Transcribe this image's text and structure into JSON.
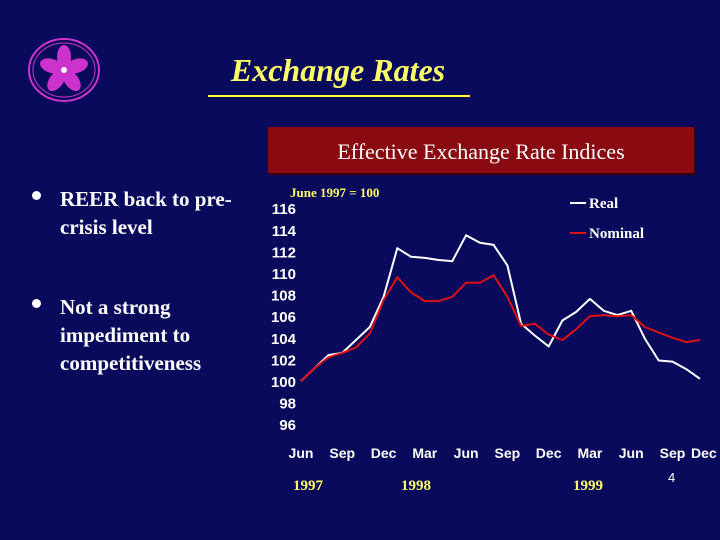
{
  "slide": {
    "title": "Exchange Rates",
    "chart_heading": "Effective Exchange Rate Indices",
    "bullets": [
      "REER back to pre-crisis level",
      "Not a strong impediment to competitiveness"
    ],
    "page_number": "4"
  },
  "colors": {
    "background": "#0a0a5c",
    "title": "#ffff66",
    "banner": "#8a0a12",
    "real_series": "#ffffff",
    "nominal_series": "#dd1111",
    "logo": "#cc33cc"
  },
  "logo_icon": "bauhinia-flower-icon",
  "chart_data": {
    "type": "line",
    "title": "",
    "note": "June 1997 = 100",
    "xlabel": "",
    "ylabel": "",
    "x_tick_labels": [
      "Jun",
      "Sep",
      "Dec",
      "Mar",
      "Jun",
      "Sep",
      "Dec",
      "Mar",
      "Jun",
      "Sep",
      "Dec"
    ],
    "year_labels": [
      "1997",
      "1998",
      "1999"
    ],
    "y_ticks": [
      96,
      98,
      100,
      102,
      104,
      106,
      108,
      110,
      112,
      114,
      116
    ],
    "ylim": [
      96,
      116
    ],
    "legend_position": "top-right",
    "grid": false,
    "x_months": [
      0,
      1,
      2,
      3,
      4,
      5,
      6,
      7,
      8,
      9,
      10,
      11,
      12,
      13,
      14,
      15,
      16,
      17,
      18,
      19,
      20,
      21,
      22,
      23,
      24,
      25,
      26,
      27,
      28,
      29
    ],
    "series": [
      {
        "name": "Real",
        "color": "#ffffff",
        "values": [
          100,
          101.2,
          102.4,
          102.6,
          103.8,
          105,
          107.8,
          112.3,
          111.5,
          111.4,
          111.2,
          111.1,
          113.5,
          112.8,
          112.6,
          110.7,
          105.3,
          104.2,
          103.2,
          105.6,
          106.4,
          107.6,
          106.5,
          106.1,
          106.5,
          103.9,
          101.9,
          101.8,
          101.1,
          100.2
        ]
      },
      {
        "name": "Nominal",
        "color": "#dd1111",
        "values": [
          100,
          101.2,
          102.2,
          102.6,
          103.1,
          104.4,
          107.5,
          109.6,
          108.2,
          107.4,
          107.4,
          107.8,
          109.1,
          109.1,
          109.8,
          107.8,
          105.1,
          105.3,
          104.3,
          103.8,
          104.8,
          106,
          106.1,
          106,
          106.1,
          105,
          104.5,
          104,
          103.6,
          103.8
        ]
      }
    ]
  }
}
